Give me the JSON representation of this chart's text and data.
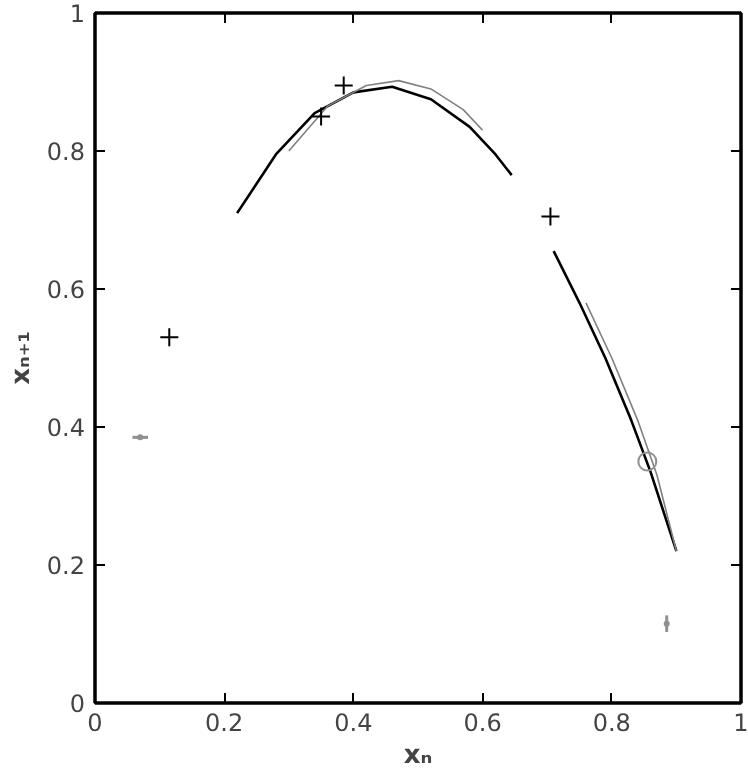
{
  "chart_data": {
    "type": "line",
    "xlabel": "xₙ",
    "ylabel": "xₙ₊₁",
    "xlim": [
      0,
      1
    ],
    "ylim": [
      0,
      1
    ],
    "xticks": [
      0,
      0.2,
      0.4,
      0.6,
      0.8,
      1
    ],
    "yticks": [
      0,
      0.2,
      0.4,
      0.6,
      0.8,
      1
    ],
    "grid": false,
    "series": [
      {
        "color": "#000000",
        "x": [
          0.22,
          0.28,
          0.34,
          0.4,
          0.46,
          0.52,
          0.58,
          0.62,
          0.645,
          null,
          0.71,
          0.75,
          0.79,
          0.83,
          0.86,
          0.9
        ],
        "values": [
          0.71,
          0.795,
          0.855,
          0.885,
          0.893,
          0.875,
          0.835,
          0.795,
          0.765,
          null,
          0.655,
          0.58,
          0.5,
          0.41,
          0.335,
          0.22
        ]
      },
      {
        "color": "#808080",
        "x": [
          0.3,
          0.36,
          0.42,
          0.47,
          0.52,
          0.57,
          0.6,
          null,
          0.76,
          0.8,
          0.84,
          0.87,
          0.9
        ],
        "values": [
          0.8,
          0.865,
          0.895,
          0.902,
          0.89,
          0.86,
          0.83,
          null,
          0.58,
          0.5,
          0.41,
          0.33,
          0.22
        ]
      },
      {
        "type": "scatter",
        "marker": "cross",
        "color": "#000000",
        "x": [
          0.115,
          0.35,
          0.385,
          0.705
        ],
        "values": [
          0.53,
          0.85,
          0.895,
          0.705
        ]
      },
      {
        "type": "scatter",
        "color": "#909090",
        "x": [
          0.07
        ],
        "values": [
          0.385
        ],
        "xerrors": [
          0.012
        ]
      },
      {
        "type": "scatter",
        "marker": "circle",
        "color": "#909090",
        "x": [
          0.855
        ],
        "values": [
          0.35
        ]
      },
      {
        "type": "scatter",
        "color": "#909090",
        "x": [
          0.885
        ],
        "values": [
          0.115
        ],
        "errors": [
          0.012
        ]
      }
    ]
  }
}
